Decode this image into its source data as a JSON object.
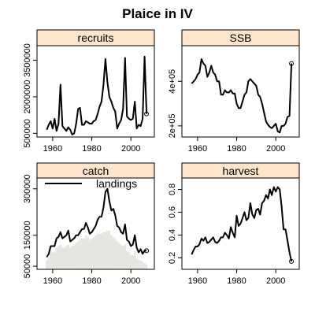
{
  "title": "Plaice in IV",
  "colors": {
    "strip_fill": "#ffe5cc",
    "line": "#000000",
    "bars": "#e5e5e2",
    "frame": "#000000"
  },
  "chart_data": [
    {
      "type": "line",
      "panel": "recruits",
      "title": "recruits",
      "xlim": [
        1952,
        2012
      ],
      "ylim": [
        350000,
        4100000
      ],
      "x_ticks": [
        1960,
        1980,
        2000
      ],
      "y_ticks": [
        500000,
        2000000,
        3500000
      ],
      "y_tick_labels": [
        "500000",
        "2000000",
        "3500000"
      ],
      "series": [
        {
          "x": [
            1957,
            1958,
            1959,
            1960,
            1961,
            1962,
            1963,
            1964,
            1965,
            1966,
            1967,
            1968,
            1969,
            1970,
            1971,
            1972,
            1973,
            1974,
            1975,
            1976,
            1977,
            1978,
            1979,
            1980,
            1981,
            1982,
            1983,
            1984,
            1985,
            1986,
            1987,
            1988,
            1989,
            1990,
            1991,
            1992,
            1993,
            1994,
            1995,
            1996,
            1997,
            1998,
            1999,
            2000,
            2001,
            2002,
            2003,
            2004,
            2005,
            2006,
            2007,
            2008
          ],
          "y": [
            650000,
            850000,
            1000000,
            700000,
            1100000,
            600000,
            900000,
            2500000,
            800000,
            700000,
            600000,
            750000,
            650000,
            450000,
            500000,
            900000,
            1500000,
            1550000,
            850000,
            850000,
            1000000,
            950000,
            900000,
            900000,
            1000000,
            1050000,
            1300000,
            1600000,
            1800000,
            2500000,
            3550000,
            2600000,
            2000000,
            1800000,
            1550000,
            1400000,
            700000,
            900000,
            1050000,
            1500000,
            3600000,
            1200000,
            1100000,
            1050000,
            1100000,
            1800000,
            700000,
            850000,
            800000,
            1100000,
            3650000,
            1300000
          ]
        }
      ],
      "end_point": [
        2008,
        1300000
      ]
    },
    {
      "type": "line",
      "panel": "SSB",
      "title": "SSB",
      "xlim": [
        1952,
        2012
      ],
      "ylim": [
        150000,
        560000
      ],
      "x_ticks": [
        1960,
        1980,
        2000
      ],
      "y_ticks": [
        200000,
        400000
      ],
      "y_tick_labels": [
        "2e+05",
        "4e+05"
      ],
      "series": [
        {
          "x": [
            1957,
            1958,
            1959,
            1960,
            1961,
            1962,
            1963,
            1964,
            1965,
            1966,
            1967,
            1968,
            1969,
            1970,
            1971,
            1972,
            1973,
            1974,
            1975,
            1976,
            1977,
            1978,
            1979,
            1980,
            1981,
            1982,
            1983,
            1984,
            1985,
            1986,
            1987,
            1988,
            1989,
            1990,
            1991,
            1992,
            1993,
            1994,
            1995,
            1996,
            1997,
            1998,
            1999,
            2000,
            2001,
            2002,
            2003,
            2004,
            2005,
            2006,
            2007,
            2008
          ],
          "y": [
            390000,
            400000,
            410000,
            430000,
            440000,
            500000,
            480000,
            470000,
            420000,
            440000,
            470000,
            440000,
            430000,
            400000,
            400000,
            340000,
            340000,
            360000,
            350000,
            350000,
            360000,
            345000,
            345000,
            300000,
            280000,
            280000,
            310000,
            340000,
            350000,
            400000,
            410000,
            400000,
            390000,
            380000,
            340000,
            330000,
            300000,
            260000,
            220000,
            205000,
            195000,
            190000,
            200000,
            210000,
            175000,
            170000,
            200000,
            200000,
            210000,
            240000,
            245000,
            480000
          ]
        }
      ],
      "end_point": [
        2008,
        480000
      ]
    },
    {
      "type": "line",
      "panel": "catch",
      "title": "catch",
      "xlim": [
        1952,
        2012
      ],
      "ylim": [
        40000,
        335000
      ],
      "x_ticks": [
        1960,
        1980,
        2000
      ],
      "y_ticks": [
        50000,
        150000,
        300000
      ],
      "y_tick_labels": [
        "50000",
        "150000",
        "300000"
      ],
      "legend": {
        "label": "landings",
        "position": "top-left"
      },
      "series": [
        {
          "x": [
            1957,
            1958,
            1959,
            1960,
            1961,
            1962,
            1963,
            1964,
            1965,
            1966,
            1967,
            1968,
            1969,
            1970,
            1971,
            1972,
            1973,
            1974,
            1975,
            1976,
            1977,
            1978,
            1979,
            1980,
            1981,
            1982,
            1983,
            1984,
            1985,
            1986,
            1987,
            1988,
            1989,
            1990,
            1991,
            1992,
            1993,
            1994,
            1995,
            1996,
            1997,
            1998,
            1999,
            2000,
            2001,
            2002,
            2003,
            2004,
            2005,
            2006,
            2007,
            2008
          ],
          "y": [
            80000,
            90000,
            115000,
            115000,
            115000,
            140000,
            145000,
            160000,
            140000,
            145000,
            150000,
            165000,
            130000,
            135000,
            140000,
            150000,
            150000,
            160000,
            170000,
            170000,
            190000,
            175000,
            155000,
            160000,
            170000,
            180000,
            200000,
            210000,
            210000,
            240000,
            290000,
            300000,
            260000,
            230000,
            235000,
            215000,
            180000,
            175000,
            160000,
            155000,
            185000,
            135000,
            130000,
            115000,
            120000,
            150000,
            110000,
            95000,
            105000,
            90000,
            100000,
            100000
          ]
        }
      ],
      "bars": {
        "x": [
          1957,
          1958,
          1959,
          1960,
          1961,
          1962,
          1963,
          1964,
          1965,
          1966,
          1967,
          1968,
          1969,
          1970,
          1971,
          1972,
          1973,
          1974,
          1975,
          1976,
          1977,
          1978,
          1979,
          1980,
          1981,
          1982,
          1983,
          1984,
          1985,
          1986,
          1987,
          1988,
          1989,
          1990,
          1991,
          1992,
          1993,
          1994,
          1995,
          1996,
          1997,
          1998,
          1999,
          2000,
          2001,
          2002,
          2003,
          2004,
          2005,
          2006,
          2007,
          2008
        ],
        "y": [
          70000,
          75000,
          95000,
          95000,
          95000,
          110000,
          115000,
          120000,
          110000,
          110000,
          115000,
          120000,
          110000,
          115000,
          120000,
          125000,
          130000,
          135000,
          140000,
          140000,
          150000,
          145000,
          135000,
          140000,
          145000,
          150000,
          155000,
          155000,
          155000,
          160000,
          160000,
          165000,
          165000,
          150000,
          145000,
          140000,
          130000,
          125000,
          120000,
          115000,
          120000,
          100000,
          95000,
          85000,
          85000,
          100000,
          75000,
          70000,
          70000,
          65000,
          60000,
          55000
        ]
      },
      "end_point": [
        2008,
        100000
      ]
    },
    {
      "type": "line",
      "panel": "harvest",
      "title": "harvest",
      "xlim": [
        1952,
        2012
      ],
      "ylim": [
        0.1,
        0.9
      ],
      "x_ticks": [
        1960,
        1980,
        2000
      ],
      "y_ticks": [
        0.2,
        0.4,
        0.6,
        0.8
      ],
      "y_tick_labels": [
        "0.2",
        "0.4",
        "0.6",
        "0.8"
      ],
      "series": [
        {
          "x": [
            1957,
            1958,
            1959,
            1960,
            1961,
            1962,
            1963,
            1964,
            1965,
            1966,
            1967,
            1968,
            1969,
            1970,
            1971,
            1972,
            1973,
            1974,
            1975,
            1976,
            1977,
            1978,
            1979,
            1980,
            1981,
            1982,
            1983,
            1984,
            1985,
            1986,
            1987,
            1988,
            1989,
            1990,
            1991,
            1992,
            1993,
            1994,
            1995,
            1996,
            1997,
            1998,
            1999,
            2000,
            2001,
            2002,
            2003,
            2004,
            2005,
            2006,
            2007,
            2008
          ],
          "y": [
            0.23,
            0.27,
            0.3,
            0.3,
            0.32,
            0.37,
            0.35,
            0.38,
            0.33,
            0.34,
            0.36,
            0.38,
            0.34,
            0.33,
            0.35,
            0.38,
            0.38,
            0.42,
            0.4,
            0.37,
            0.47,
            0.42,
            0.38,
            0.57,
            0.48,
            0.5,
            0.55,
            0.6,
            0.53,
            0.55,
            0.68,
            0.58,
            0.55,
            0.62,
            0.63,
            0.58,
            0.68,
            0.7,
            0.75,
            0.72,
            0.8,
            0.75,
            0.82,
            0.78,
            0.82,
            0.8,
            0.65,
            0.45,
            0.45,
            0.35,
            0.25,
            0.17
          ]
        }
      ],
      "end_point": [
        2008,
        0.17
      ]
    }
  ]
}
